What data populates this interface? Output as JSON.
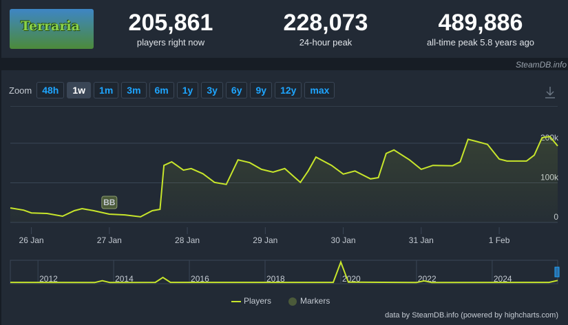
{
  "game": "Terraria",
  "stats": [
    {
      "value": "205,861",
      "label": "players right now"
    },
    {
      "value": "228,073",
      "label": "24-hour peak"
    },
    {
      "value": "489,886",
      "label": "all-time peak 5.8 years ago"
    }
  ],
  "source": "SteamDB.info",
  "zoom_label": "Zoom",
  "zoom_buttons": [
    "48h",
    "1w",
    "1m",
    "3m",
    "6m",
    "1y",
    "3y",
    "6y",
    "9y",
    "12y",
    "max"
  ],
  "credit": "data by SteamDB.info (powered by highcharts.com)",
  "chart_data": {
    "type": "line",
    "xlim": [
      -0.27,
      6.75
    ],
    "xticks": [
      {
        "value": 0,
        "label": "26 Jan"
      },
      {
        "value": 1,
        "label": "27 Jan"
      },
      {
        "value": 2,
        "label": "28 Jan"
      },
      {
        "value": 3,
        "label": "29 Jan"
      },
      {
        "value": 4,
        "label": "30 Jan"
      },
      {
        "value": 5,
        "label": "31 Jan"
      },
      {
        "value": 6,
        "label": "1 Feb"
      }
    ],
    "ylim": [
      0,
      300000
    ],
    "yticks": [
      0,
      {
        "value": 100000,
        "label": "100k"
      },
      {
        "value": 200000,
        "label": "200k"
      }
    ],
    "grid": true,
    "series": [
      {
        "name": "Players",
        "color": "#c8e62b",
        "x": [
          -0.27,
          -0.1,
          0.0,
          0.2,
          0.4,
          0.55,
          0.65,
          0.8,
          1.0,
          1.2,
          1.4,
          1.55,
          1.65,
          1.7,
          1.8,
          1.95,
          2.05,
          2.2,
          2.35,
          2.5,
          2.65,
          2.8,
          2.95,
          3.1,
          3.25,
          3.45,
          3.55,
          3.65,
          3.85,
          4.0,
          4.15,
          4.35,
          4.45,
          4.55,
          4.65,
          4.85,
          5.0,
          5.15,
          5.4,
          5.5,
          5.6,
          5.7,
          5.85,
          6.0,
          6.1,
          6.35,
          6.45,
          6.55,
          6.65,
          6.75
        ],
        "values": [
          36500,
          31000,
          24000,
          22600,
          15700,
          29600,
          34800,
          29600,
          20900,
          19000,
          14000,
          29600,
          33000,
          144000,
          153000,
          132000,
          136000,
          123000,
          101000,
          96000,
          158000,
          151000,
          134000,
          127000,
          136000,
          101000,
          130000,
          165000,
          144000,
          122000,
          130000,
          110000,
          113000,
          174000,
          183000,
          158000,
          134000,
          144000,
          143000,
          153000,
          210000,
          205000,
          197000,
          160000,
          155000,
          155000,
          170000,
          214000,
          217000,
          193000
        ]
      },
      {
        "name": "Markers",
        "color": "#4b5a3a"
      }
    ],
    "markers": [
      {
        "x": 1.0,
        "label": "BB"
      }
    ],
    "navigator": {
      "xlim": [
        2011.27,
        2025.73
      ],
      "ylim": [
        0,
        500000
      ],
      "xticks": [
        2012,
        2014,
        2016,
        2018,
        2020,
        2022,
        2024
      ],
      "x": [
        2011.27,
        2013.5,
        2013.7,
        2013.9,
        2015.1,
        2015.3,
        2015.5,
        2019.8,
        2020.0,
        2020.2,
        2022.0,
        2022.2,
        2022.4,
        2025.5,
        2025.73
      ],
      "values": [
        15000,
        12000,
        55000,
        12000,
        15000,
        130000,
        15000,
        15000,
        490000,
        20000,
        12000,
        50000,
        12000,
        15000,
        60000
      ]
    }
  }
}
